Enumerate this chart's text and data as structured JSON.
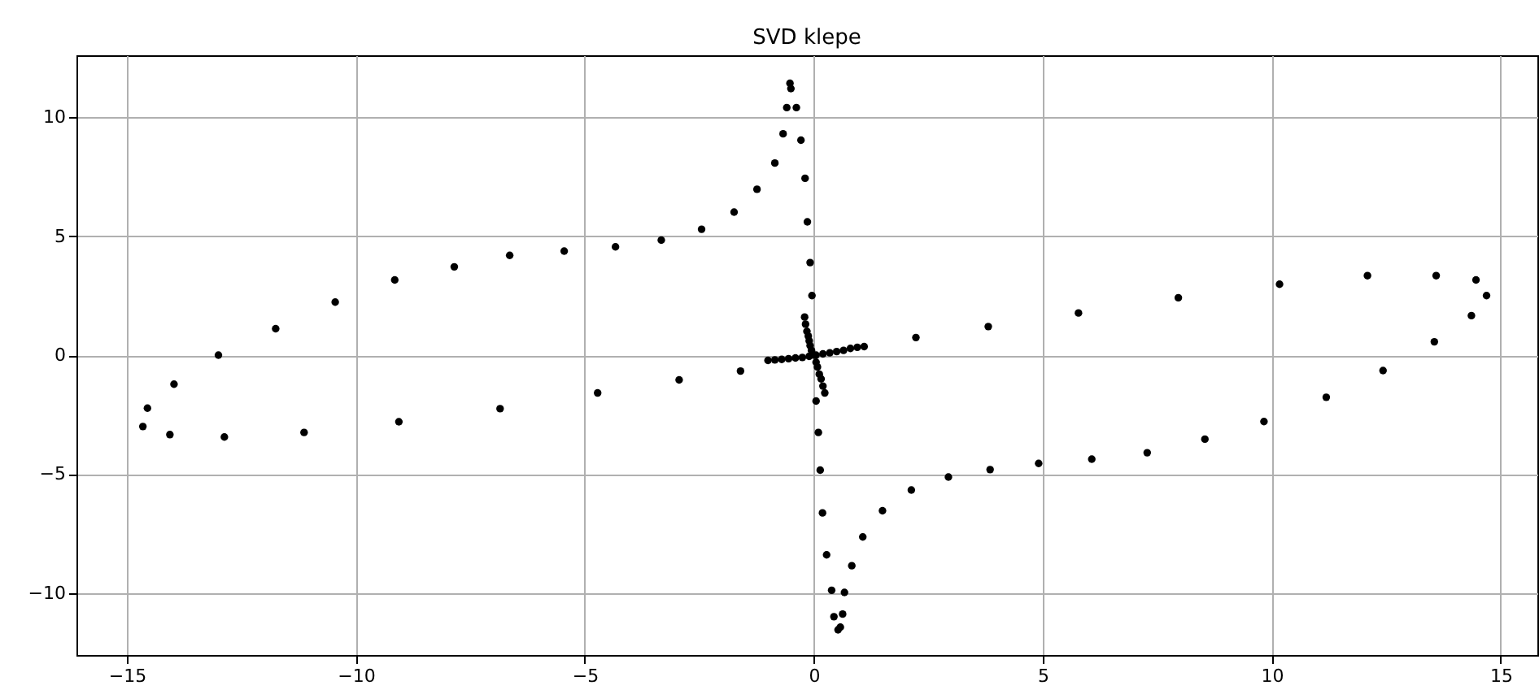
{
  "chart_data": {
    "type": "scatter",
    "title": "SVD klepe",
    "x": [
      -14.65,
      -14.55,
      -13.97,
      -14.06,
      -13.0,
      -12.87,
      -11.75,
      -11.13,
      -10.45,
      -9.15,
      -9.06,
      -7.85,
      -6.85,
      -6.64,
      -5.45,
      -4.72,
      -4.33,
      -3.33,
      -2.94,
      -2.45,
      -1.74,
      -1.6,
      -0.14,
      -0.08,
      -0.04,
      -0.52,
      -0.5,
      -0.59,
      -0.38,
      -0.67,
      -0.28,
      -0.85,
      -0.19,
      -1.24,
      2.23,
      3.81,
      5.78,
      7.96,
      10.17,
      12.09,
      13.59,
      14.46,
      14.69,
      14.36,
      13.55,
      12.43,
      11.19,
      9.83,
      8.54,
      7.28,
      6.07,
      4.91,
      3.85,
      0.05,
      0.1,
      0.14,
      2.94,
      2.13,
      1.5,
      0.19,
      1.07,
      0.28,
      0.83,
      0.39,
      0.67,
      0.44,
      0.63,
      0.53,
      0.58,
      -1.0,
      -0.85,
      -0.7,
      -0.55,
      -0.4,
      -0.25,
      -0.1,
      0.05,
      0.2,
      0.35,
      0.5,
      0.65,
      0.8,
      0.95,
      1.1,
      -0.2,
      -0.18,
      -0.15,
      -0.12,
      -0.1,
      -0.08,
      -0.05,
      0.0,
      0.05,
      0.08,
      0.12,
      0.16,
      0.2,
      0.24
    ],
    "values": [
      -3.0,
      -2.23,
      -1.22,
      -3.34,
      0.0,
      -3.44,
      1.11,
      -3.25,
      2.23,
      3.16,
      -2.8,
      3.71,
      -2.25,
      4.19,
      4.37,
      -1.59,
      4.55,
      4.83,
      -1.04,
      5.29,
      6.01,
      -0.67,
      5.6,
      3.89,
      2.5,
      11.42,
      11.2,
      10.4,
      10.4,
      9.3,
      9.03,
      8.07,
      7.43,
      6.97,
      0.74,
      1.2,
      1.77,
      2.41,
      2.98,
      3.34,
      3.34,
      3.16,
      2.5,
      1.66,
      0.56,
      -0.65,
      -1.77,
      -2.79,
      -3.53,
      -4.1,
      -4.37,
      -4.55,
      -4.81,
      -1.93,
      -3.25,
      -4.83,
      -5.12,
      -5.67,
      -6.54,
      -6.63,
      -7.64,
      -8.39,
      -8.85,
      -9.88,
      -9.97,
      -10.99,
      -10.88,
      -11.54,
      -11.43,
      -0.22,
      -0.2,
      -0.18,
      -0.15,
      -0.12,
      -0.1,
      -0.05,
      0.0,
      0.05,
      0.1,
      0.15,
      0.2,
      0.28,
      0.33,
      0.36,
      1.6,
      1.3,
      1.0,
      0.8,
      0.6,
      0.4,
      0.2,
      0.0,
      -0.3,
      -0.5,
      -0.8,
      -1.0,
      -1.3,
      -1.59
    ],
    "color": "#000000",
    "marker": "circle",
    "grid": true,
    "xlim": [
      -16.1,
      15.8
    ],
    "ylim": [
      -12.6,
      12.6
    ],
    "xticks": [
      {
        "value": -15,
        "label": "−15"
      },
      {
        "value": -10,
        "label": "−10"
      },
      {
        "value": -5,
        "label": "−5"
      },
      0,
      5,
      10,
      15
    ],
    "yticks": [
      {
        "value": -10,
        "label": "−10"
      },
      {
        "value": -5,
        "label": "−5"
      },
      0,
      5,
      10
    ]
  }
}
